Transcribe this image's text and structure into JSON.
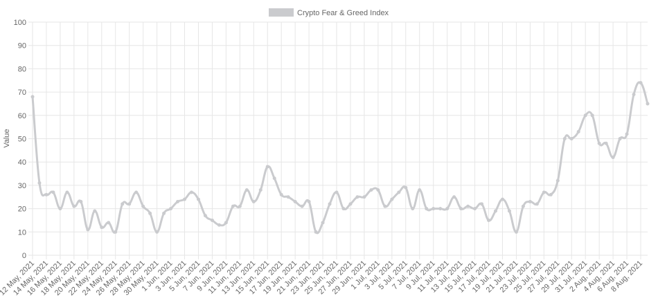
{
  "chart_data": {
    "type": "line",
    "y_label": "Value",
    "categories": [
      "12 May, 2021",
      null,
      "14 May, 2021",
      null,
      "16 May, 2021",
      null,
      "18 May, 2021",
      null,
      "20 May, 2021",
      null,
      "22 May, 2021",
      null,
      "24 May, 2021",
      null,
      "26 May, 2021",
      null,
      "28 May, 2021",
      null,
      "30 May, 2021",
      null,
      "1 Jun, 2021",
      null,
      "3 Jun, 2021",
      null,
      "5 Jun, 2021",
      null,
      "7 Jun, 2021",
      null,
      "9 Jun, 2021",
      null,
      "11 Jun, 2021",
      null,
      "13 Jun, 2021",
      null,
      "15 Jun, 2021",
      null,
      "17 Jun, 2021",
      null,
      "19 Jun, 2021",
      null,
      "21 Jun, 2021",
      null,
      "23 Jun, 2021",
      null,
      "25 Jun, 2021",
      null,
      "27 Jun, 2021",
      null,
      "29 Jun, 2021",
      null,
      "1 Jul, 2021",
      null,
      "3 Jul, 2021",
      null,
      "5 Jul, 2021",
      null,
      "7 Jul, 2021",
      null,
      "9 Jul, 2021",
      null,
      "11 Jul, 2021",
      null,
      "13 Jul, 2021",
      null,
      "15 Jul, 2021",
      null,
      "17 Jul, 2021",
      null,
      "19 Jul, 2021",
      null,
      "21 Jul, 2021",
      null,
      "23 Jul, 2021",
      null,
      "25 Jul, 2021",
      null,
      "27 Jul, 2021",
      null,
      "29 Jul, 2021",
      null,
      "31 Jul, 2021",
      null,
      "2 Aug, 2021",
      null,
      "4 Aug, 2021",
      null,
      "6 Aug, 2021",
      null,
      "8 Aug, 2021",
      null
    ],
    "series": [
      {
        "name": "Crypto Fear & Greed Index",
        "color": "#cacbce",
        "values": [
          68,
          31,
          26,
          27,
          20,
          27,
          21,
          23,
          11,
          19,
          12,
          14,
          10,
          22,
          22,
          27,
          21,
          18,
          10,
          18,
          20,
          23,
          24,
          27,
          24,
          17,
          15,
          13,
          14,
          21,
          21,
          28,
          23,
          28,
          38,
          33,
          26,
          25,
          23,
          21,
          23,
          10,
          14,
          22,
          27,
          20,
          22,
          25,
          25,
          28,
          28,
          21,
          24,
          27,
          29,
          20,
          28,
          20,
          20,
          20,
          20,
          25,
          20,
          21,
          20,
          22,
          15,
          19,
          24,
          19,
          10,
          21,
          23,
          22,
          27,
          26,
          32,
          50,
          50,
          53,
          60,
          60,
          48,
          48,
          42,
          50,
          52,
          69,
          74,
          65
        ]
      }
    ],
    "ylim": [
      0,
      100
    ],
    "yticks": [
      0,
      10,
      20,
      30,
      40,
      50,
      60,
      70,
      80,
      90,
      100
    ],
    "grid": true,
    "legend": "top"
  }
}
